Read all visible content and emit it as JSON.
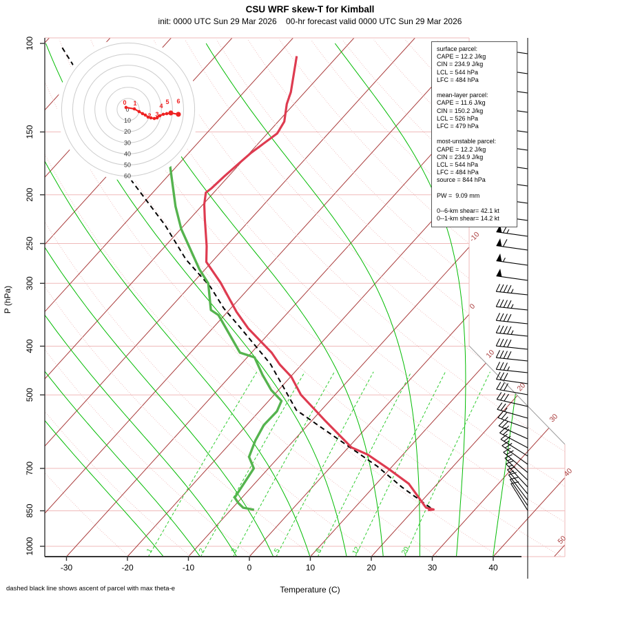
{
  "header": {
    "title": "CSU WRF skew-T for Kimball",
    "subtitle": "init: 0000 UTC Sun 29 Mar 2026    00-hr forecast valid 0000 UTC Sun 29 Mar 2026"
  },
  "caption": "dashed black line shows ascent of parcel with max theta-e",
  "axes": {
    "x_label": "Temperature (C)",
    "y_label": "P (hPa)",
    "x_ticks": [
      -30,
      -20,
      -10,
      0,
      10,
      20,
      30,
      40
    ],
    "y_ticks": [
      100,
      150,
      200,
      250,
      300,
      400,
      500,
      700,
      850,
      1000
    ]
  },
  "info_box": {
    "lines": [
      "surface parcel:",
      "CAPE = 12.2 J/kg",
      "CIN = 234.9 J/kg",
      "LCL = 544 hPa",
      "LFC = 484 hPa",
      "",
      "mean-layer parcel:",
      "CAPE = 11.6 J/kg",
      "CIN = 150.2 J/kg",
      "LCL = 526 hPa",
      "LFC = 479 hPa",
      "",
      "most-unstable parcel:",
      "CAPE = 12.2 J/kg",
      "CIN = 234.9 J/kg",
      "LCL = 544 hPa",
      "LFC = 484 hPa",
      "source = 844 hPa",
      "",
      "PW =  9.09 mm",
      "",
      "0--6-km shear= 42.1 kt",
      "0--1-km shear= 14.2 kt"
    ]
  },
  "chart_data": {
    "type": "skewt_log_p_sounding",
    "pressure_range_hPa": [
      100,
      1050
    ],
    "temperature_axis_C": [
      -30,
      40
    ],
    "temperature_profile_pT": [
      [
        106,
        -66.7
      ],
      [
        125,
        -62.3
      ],
      [
        132,
        -61.2
      ],
      [
        143,
        -59.0
      ],
      [
        151,
        -58.4
      ],
      [
        165,
        -59.8
      ],
      [
        173,
        -60.2
      ],
      [
        184,
        -60.7
      ],
      [
        194,
        -61.0
      ],
      [
        198,
        -61.3
      ],
      [
        209,
        -59.8
      ],
      [
        223,
        -57.6
      ],
      [
        253,
        -53.2
      ],
      [
        272,
        -50.9
      ],
      [
        299,
        -45.5
      ],
      [
        342,
        -38.5
      ],
      [
        369,
        -34.1
      ],
      [
        412,
        -26.7
      ],
      [
        435,
        -23.6
      ],
      [
        460,
        -19.9
      ],
      [
        500,
        -15.6
      ],
      [
        560,
        -8.1
      ],
      [
        636,
        0.5
      ],
      [
        657,
        4.2
      ],
      [
        700,
        9.6
      ],
      [
        751,
        15.3
      ],
      [
        838,
        21.7
      ],
      [
        845,
        23.2
      ],
      [
        848,
        22.4
      ]
    ],
    "dewpoint_profile_pT": [
      [
        174,
        -71.4
      ],
      [
        211,
        -64.2
      ],
      [
        234,
        -59.9
      ],
      [
        281,
        -51.0
      ],
      [
        300,
        -47.4
      ],
      [
        339,
        -43.0
      ],
      [
        347,
        -41.0
      ],
      [
        412,
        -31.9
      ],
      [
        421,
        -28.8
      ],
      [
        456,
        -24.9
      ],
      [
        489,
        -21.2
      ],
      [
        514,
        -17.9
      ],
      [
        539,
        -17.1
      ],
      [
        574,
        -17.2
      ],
      [
        616,
        -16.3
      ],
      [
        664,
        -14.9
      ],
      [
        700,
        -12.4
      ],
      [
        800,
        -11.2
      ],
      [
        820,
        -9.8
      ],
      [
        838,
        -8.3
      ],
      [
        846,
        -6.2
      ]
    ],
    "parcel_profile_pT": [
      [
        102,
        -106.4
      ],
      [
        140,
        -89.0
      ],
      [
        188,
        -75.1
      ],
      [
        230,
        -63.1
      ],
      [
        269,
        -54.6
      ],
      [
        305,
        -46.5
      ],
      [
        336,
        -41.2
      ],
      [
        369,
        -35.3
      ],
      [
        434,
        -25.2
      ],
      [
        536,
        -14.1
      ],
      [
        598,
        -4.9
      ],
      [
        693,
        7.5
      ],
      [
        762,
        14.6
      ],
      [
        844,
        23.0
      ]
    ],
    "isotherms_C": {
      "min": -110,
      "max": 50,
      "step": 10
    },
    "isotherm_labels": [
      {
        "t": "-10",
        "x": 691,
        "y": 346
      },
      {
        "t": "0",
        "x": 688,
        "y": 447
      },
      {
        "t": "10",
        "x": 714,
        "y": 516
      },
      {
        "t": "20",
        "x": 759,
        "y": 564
      },
      {
        "t": "30",
        "x": 806,
        "y": 609
      },
      {
        "t": "40",
        "x": 827,
        "y": 688
      },
      {
        "t": "50",
        "x": 818,
        "y": 786
      }
    ],
    "dry_adiabats_theta_K": [
      250,
      260,
      270,
      280,
      290,
      300,
      310,
      320,
      330,
      340,
      350,
      360,
      370,
      380,
      390,
      400,
      410,
      420,
      430,
      440
    ],
    "moist_adiabats_T0_C": [
      -14,
      -8,
      -2,
      4,
      10,
      16,
      22,
      28,
      34,
      40
    ],
    "mixing_ratio_g_kg": [
      1,
      2,
      3,
      5,
      8,
      12,
      20
    ],
    "hodograph": {
      "rings_kt": [
        10,
        20,
        30,
        40,
        50,
        60
      ],
      "ring_labels": [
        0,
        10,
        20,
        30,
        40,
        50,
        60
      ],
      "trace_uv_kt": [
        [
          -1.9,
          -1.9
        ],
        [
          5.6,
          -0.6
        ],
        [
          9.9,
          1.9
        ],
        [
          13.0,
          3.7
        ],
        [
          15.5,
          5.0
        ],
        [
          18.0,
          6.8
        ],
        [
          20.5,
          7.5
        ],
        [
          23.6,
          8.1
        ],
        [
          26.1,
          7.5
        ],
        [
          28.6,
          5.6
        ],
        [
          31.7,
          4.3
        ],
        [
          34.8,
          3.7
        ],
        [
          38.5,
          3.1
        ],
        [
          45.3,
          4.3
        ]
      ],
      "km_labels": [
        {
          "km": "0",
          "x": 181,
          "y": 152
        },
        {
          "km": "1",
          "x": 196,
          "y": 153
        },
        {
          "km": "2",
          "x": 217,
          "y": 171
        },
        {
          "km": "3",
          "x": 228,
          "y": 169
        },
        {
          "km": "4",
          "x": 234,
          "y": 157
        },
        {
          "km": "5",
          "x": 243,
          "y": 151
        },
        {
          "km": "6",
          "x": 259,
          "y": 150
        }
      ]
    },
    "wind_barbs_y_spd_ang": [
      [
        78,
        55,
        8
      ],
      [
        107,
        60,
        8
      ],
      [
        135,
        60,
        8
      ],
      [
        163,
        65,
        8
      ],
      [
        192,
        70,
        8
      ],
      [
        218,
        75,
        8
      ],
      [
        245,
        75,
        8
      ],
      [
        270,
        75,
        8
      ],
      [
        295,
        75,
        8
      ],
      [
        320,
        70,
        8
      ],
      [
        343,
        65,
        8
      ],
      [
        363,
        60,
        8
      ],
      [
        385,
        55,
        8
      ],
      [
        407,
        50,
        8
      ],
      [
        428,
        45,
        6
      ],
      [
        450,
        45,
        6
      ],
      [
        470,
        40,
        6
      ],
      [
        488,
        45,
        6
      ],
      [
        507,
        40,
        6
      ],
      [
        524,
        40,
        6
      ],
      [
        541,
        35,
        6
      ],
      [
        557,
        30,
        8
      ],
      [
        573,
        30,
        10
      ],
      [
        590,
        30,
        13
      ],
      [
        607,
        25,
        16
      ],
      [
        622,
        25,
        20
      ],
      [
        637,
        25,
        24
      ],
      [
        650,
        20,
        28
      ],
      [
        662,
        20,
        32
      ],
      [
        674,
        20,
        36
      ],
      [
        686,
        20,
        40
      ],
      [
        697,
        15,
        44
      ],
      [
        707,
        15,
        47
      ],
      [
        717,
        15,
        50
      ],
      [
        726,
        10,
        53
      ],
      [
        734,
        10,
        56
      ],
      [
        741,
        10,
        58
      ]
    ],
    "colors": {
      "isotherm": "#A93B3B",
      "dry_adiabat": "#EFB9B9",
      "pressure_line": "#EFB9B9",
      "moist_adiabat": "#00BB00",
      "mixing_ratio": "#2FCC2F",
      "temperature": "#DE3B50",
      "dewpoint": "#55B34E",
      "parcel": "#000000",
      "hodograph_trace": "#EE2222",
      "frame_gray": "#999999",
      "axis_dark": "#333333"
    }
  }
}
